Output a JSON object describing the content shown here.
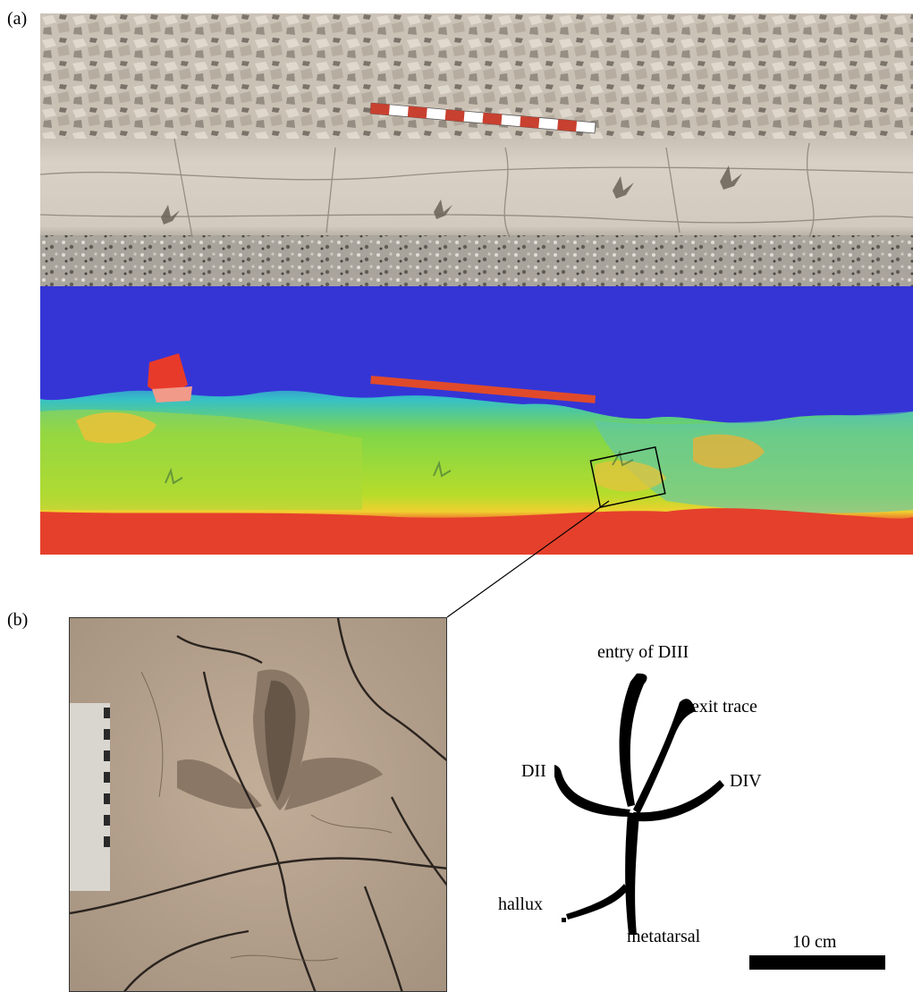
{
  "figure": {
    "panel_a_label": "(a)",
    "panel_b_label": "(b)",
    "drawing_labels": {
      "entry": "entry of DIII",
      "exit": "exit trace",
      "dii": "DII",
      "div": "DIV",
      "hallux": "hallux",
      "metatarsal": "metatarsal"
    },
    "scale_label": "10 cm"
  },
  "colors": {
    "rock": "#d8cfc4",
    "map_low": "#3030d8",
    "map_mid": "#9ad83a",
    "map_high": "#e83a2a"
  }
}
